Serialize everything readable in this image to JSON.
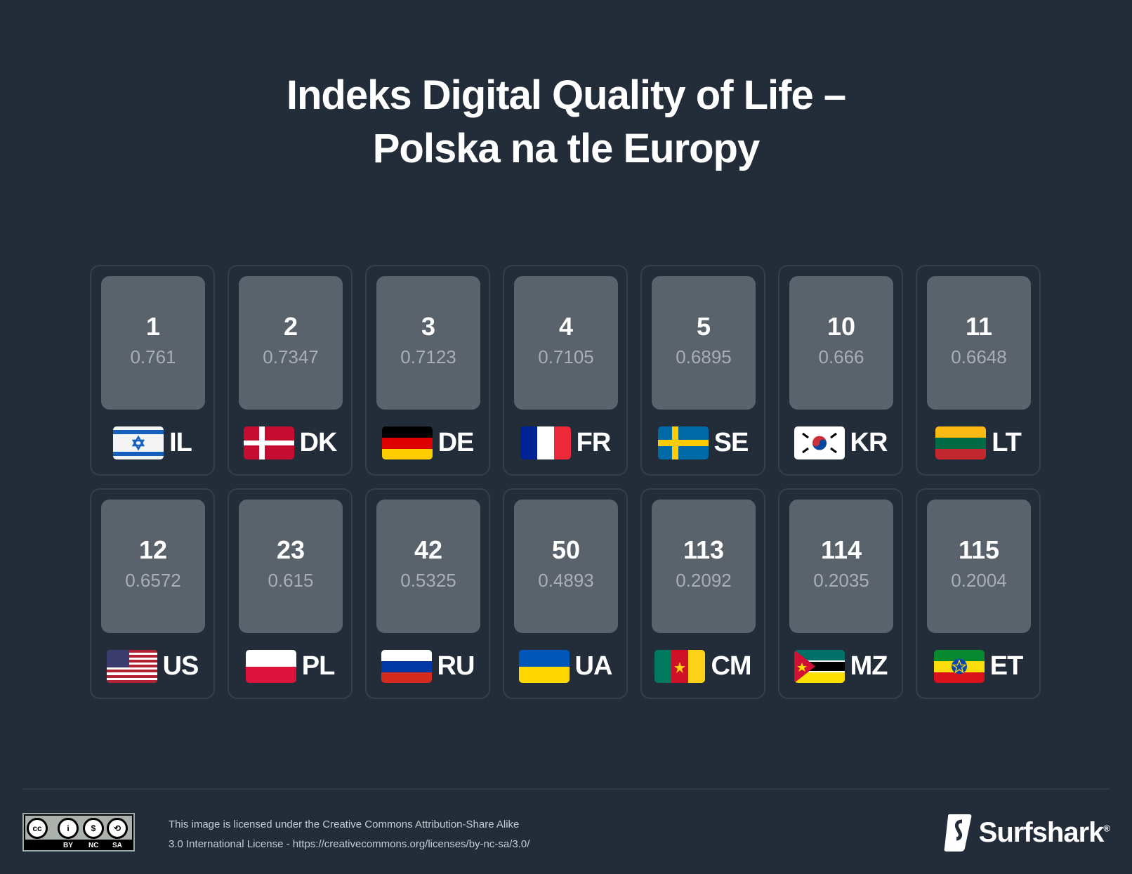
{
  "title": {
    "line1": "Indeks Digital Quality of Life –",
    "line2": "Polska na tle Europy"
  },
  "countries": [
    {
      "rank": "1",
      "score": "0.761",
      "code": "IL"
    },
    {
      "rank": "2",
      "score": "0.7347",
      "code": "DK"
    },
    {
      "rank": "3",
      "score": "0.7123",
      "code": "DE"
    },
    {
      "rank": "4",
      "score": "0.7105",
      "code": "FR"
    },
    {
      "rank": "5",
      "score": "0.6895",
      "code": "SE"
    },
    {
      "rank": "10",
      "score": "0.666",
      "code": "KR"
    },
    {
      "rank": "11",
      "score": "0.6648",
      "code": "LT"
    },
    {
      "rank": "12",
      "score": "0.6572",
      "code": "US"
    },
    {
      "rank": "23",
      "score": "0.615",
      "code": "PL"
    },
    {
      "rank": "42",
      "score": "0.5325",
      "code": "RU"
    },
    {
      "rank": "50",
      "score": "0.4893",
      "code": "UA"
    },
    {
      "rank": "113",
      "score": "0.2092",
      "code": "CM"
    },
    {
      "rank": "114",
      "score": "0.2035",
      "code": "MZ"
    },
    {
      "rank": "115",
      "score": "0.2004",
      "code": "ET"
    }
  ],
  "footer": {
    "license_line1": "This image is licensed under the Creative Commons Attribution-Share Alike",
    "license_line2": "3.0 International License - https://creativecommons.org/licenses/by-nc-sa/3.0/",
    "cc_labels": [
      "BY",
      "NC",
      "SA"
    ],
    "cc_icons": [
      "cc",
      "i",
      "$",
      "⟲"
    ],
    "brand": "Surfshark",
    "registered": "®"
  }
}
